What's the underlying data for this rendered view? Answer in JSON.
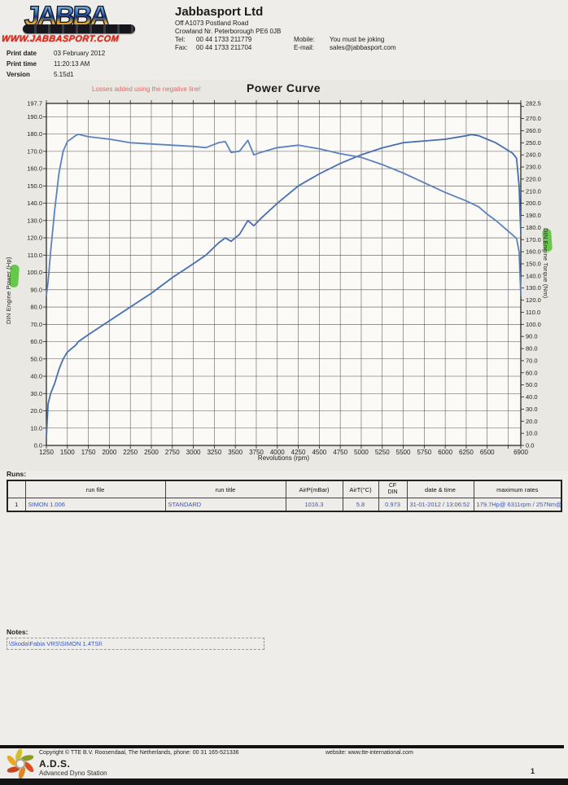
{
  "page": {
    "number": "1"
  },
  "letterhead": {
    "logo_text": "JABBA",
    "logo_url": "WWW.JABBASPORT.COM",
    "company": "Jabbasport Ltd",
    "address_line1": "Off A1073 Postland Road",
    "address_line2": "Crowland Nr. Peterborough PE6 0JB",
    "tel_label": "Tel:",
    "tel": "00 44 1733 211779",
    "mobile_label": "Mobile:",
    "mobile": "You must be joking",
    "fax_label": "Fax:",
    "fax": "00 44 1733 211704",
    "email_label": "E-mail:",
    "email": "sales@jabbasport.com"
  },
  "print_info": {
    "date_label": "Print date",
    "date": "03 February 2012",
    "time_label": "Print time",
    "time": "11:20:13 AM",
    "version_label": "Version",
    "version": "5.15d1"
  },
  "chart_data": {
    "type": "line",
    "title": "Power Curve",
    "note": "Losses added using the negative line!",
    "xlabel": "Revolutions (rpm)",
    "ylabel_left": "DIN Engine Power (Hp)",
    "ylabel_right": "DIN Engine Torque (Nm)",
    "xlim": [
      1250,
      6900
    ],
    "ylim_left": [
      0,
      197.7
    ],
    "ylim_right": [
      0,
      282.5
    ],
    "grid": "on",
    "legend": "none",
    "x_tick_labels": [
      "1250",
      "1500",
      "1750",
      "2000",
      "2250",
      "2500",
      "2750",
      "3000",
      "3250",
      "3500",
      "3750",
      "4000",
      "4250",
      "4500",
      "4750",
      "5000",
      "5250",
      "5500",
      "5750",
      "6000",
      "6250",
      "6500",
      "6900"
    ],
    "left_tick_labels": [
      "197.7",
      "190.0",
      "180.0",
      "170.0",
      "160.0",
      "150.0",
      "140.0",
      "130.0",
      "120.0",
      "110.0",
      "100.0",
      "90.0",
      "80.0",
      "70.0",
      "60.0",
      "50.0",
      "40.0",
      "30.0",
      "20.0",
      "10.0",
      "0.0"
    ],
    "right_tick_labels": [
      "282.5",
      "270.0",
      "260.0",
      "250.0",
      "240.0",
      "230.0",
      "220.0",
      "210.0",
      "200.0",
      "190.0",
      "180.0",
      "170.0",
      "160.0",
      "150.0",
      "140.0",
      "130.0",
      "120.0",
      "110.0",
      "100.0",
      "90.0",
      "80.0",
      "70.0",
      "60.0",
      "50.0",
      "40.0",
      "30.0",
      "20.0",
      "10.0",
      "0.0"
    ],
    "x": [
      1250,
      1270,
      1300,
      1350,
      1400,
      1450,
      1500,
      1600,
      1631,
      1750,
      2000,
      2250,
      2500,
      2750,
      3000,
      3150,
      3300,
      3380,
      3450,
      3550,
      3650,
      3720,
      3800,
      4000,
      4250,
      4500,
      4750,
      5000,
      5250,
      5500,
      5750,
      6000,
      6250,
      6311,
      6400,
      6500,
      6600,
      6700,
      6800,
      6850,
      6880,
      6900
    ],
    "series": [
      {
        "name": "DIN Engine Power",
        "units": "Hp",
        "axis": "left",
        "color": "#466fb0",
        "values": [
          5,
          24,
          30,
          36,
          44,
          50,
          54,
          58,
          60,
          64,
          72,
          80,
          88,
          97,
          105,
          110,
          117,
          120,
          118,
          122,
          130,
          127,
          131,
          140,
          150,
          157,
          163,
          168,
          172,
          175,
          176,
          177,
          179,
          179.7,
          179,
          177,
          175,
          172,
          169,
          166,
          150,
          122
        ]
      },
      {
        "name": "DIN Engine Torque",
        "units": "Nm",
        "axis": "right",
        "color": "#5c82bd",
        "values": [
          124,
          135,
          160,
          195,
          225,
          243,
          251,
          256,
          257,
          255,
          253,
          250,
          249,
          248,
          247,
          246,
          250,
          251,
          242,
          243,
          252,
          240,
          242,
          246,
          248,
          245,
          241,
          238,
          232,
          225,
          217,
          209,
          202,
          200,
          197,
          191,
          186,
          180,
          174,
          171,
          160,
          124
        ]
      }
    ]
  },
  "runs_table": {
    "section_label": "Runs:",
    "headers": {
      "file": "run file",
      "title": "run title",
      "airp": "AirP(mBar)",
      "airt": "AirT(°C)",
      "cf_line1": "CF",
      "cf_line2": "DIN",
      "datetime": "date & time",
      "max": "maximum rates"
    },
    "row": {
      "num": "1",
      "file": "SIMON 1.006",
      "title": "STANDARD",
      "airp": "1016.3",
      "airt": "5.8",
      "cf": "0.973",
      "datetime": "31-01-2012 / 13:06:52",
      "max": "179.7Hp@ 6311rpm / 257Nm@ 1631rpm"
    }
  },
  "notes": {
    "label": "Notes:",
    "value": "\\Skoda\\Fabia VRS\\SIMON 1.4TSI\\"
  },
  "footer": {
    "copyright": "Copyright © TTE B.V. Roosendaal, The Netherlands, phone: 00 31 165-521336",
    "website": "website: www.tte-international.com",
    "ads_acronym": "A.D.S.",
    "ads_name": "Advanced Dyno Station"
  },
  "colors": {
    "power_curve": "#466fb0",
    "torque_curve": "#5c82bd",
    "data_text_blue": "#3a56c0",
    "note_red": "#e36a6a",
    "logo_red": "#e02818",
    "highlight_green": "#4fc32e",
    "plot_bg": "#fbfaf7",
    "grid": "#555555"
  }
}
